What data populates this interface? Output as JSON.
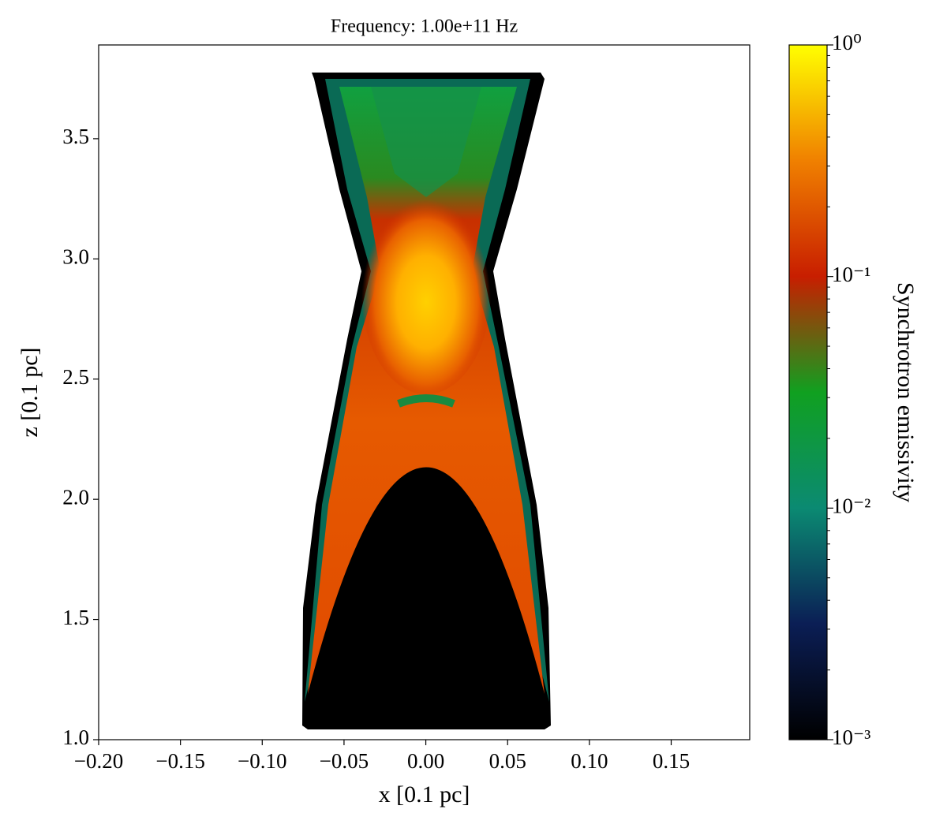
{
  "chart_data": {
    "type": "heatmap",
    "title": "Frequency: 1.00e+11 Hz",
    "x_label": "x [0.1 pc]",
    "y_label": "z [0.1 pc]",
    "xlim": [
      -0.2,
      0.198
    ],
    "ylim": [
      1.0,
      3.89
    ],
    "xticks": [
      {
        "value": -0.2,
        "label": "−0.20"
      },
      {
        "value": -0.15,
        "label": "−0.15"
      },
      {
        "value": -0.1,
        "label": "−0.10"
      },
      {
        "value": -0.05,
        "label": "−0.05"
      },
      {
        "value": 0,
        "label": "0.00"
      },
      {
        "value": 0.05,
        "label": "0.05"
      },
      {
        "value": 0.1,
        "label": "0.10"
      },
      {
        "value": 0.15,
        "label": "0.15"
      }
    ],
    "yticks": [
      {
        "value": 1,
        "label": "1.0"
      },
      {
        "value": 1.5,
        "label": "1.5"
      },
      {
        "value": 2,
        "label": "2.0"
      },
      {
        "value": 2.5,
        "label": "2.5"
      },
      {
        "value": 3,
        "label": "3.0"
      },
      {
        "value": 3.5,
        "label": "3.5"
      }
    ],
    "grid": false,
    "colorbar": {
      "label": "Synchrotron emissivity",
      "log_scale": true,
      "clim": [
        0.001,
        1
      ],
      "ticks": [
        {
          "value": 0.001,
          "label": "10⁻³"
        },
        {
          "value": 0.01,
          "label": "10⁻²"
        },
        {
          "value": 0.1,
          "label": "10⁻¹"
        },
        {
          "value": 1,
          "label": "10⁰"
        }
      ],
      "minor_ticks": [
        0.002,
        0.003,
        0.004,
        0.005,
        0.006,
        0.007,
        0.008,
        0.009,
        0.02,
        0.03,
        0.04,
        0.05,
        0.06,
        0.07,
        0.08,
        0.09,
        0.2,
        0.3,
        0.4,
        0.5,
        0.6,
        0.7,
        0.8,
        0.9
      ],
      "colormap": [
        "#000000",
        "#0b1e55",
        "#0b8a72",
        "#10a020",
        "#c81e00",
        "#f08000",
        "#ffff00"
      ]
    }
  }
}
